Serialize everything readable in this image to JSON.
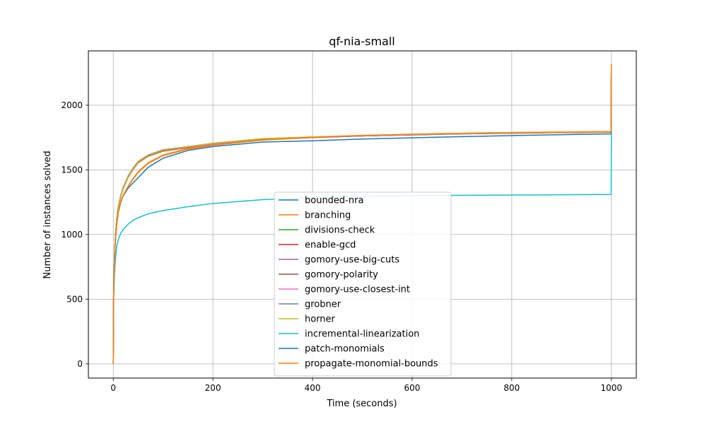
{
  "chart_data": {
    "type": "line",
    "title": "qf-nia-small",
    "xlabel": "Time (seconds)",
    "ylabel": "Number of instances solved",
    "xlim": [
      -50,
      1050
    ],
    "ylim": [
      -110,
      2420
    ],
    "xticks": [
      0,
      200,
      400,
      600,
      800,
      1000
    ],
    "yticks": [
      0,
      500,
      1000,
      1500,
      2000
    ],
    "grid": true,
    "legend_position": "lower-center",
    "series": [
      {
        "name": "bounded-nra",
        "color": "#1f77b4",
        "x": [
          0,
          0.5,
          1,
          2,
          3,
          5,
          7,
          10,
          15,
          20,
          30,
          40,
          50,
          70,
          100,
          150,
          200,
          300,
          400,
          500,
          600,
          700,
          800,
          900,
          999.5,
          1000
        ],
        "y": [
          0,
          450,
          620,
          760,
          880,
          1020,
          1120,
          1210,
          1300,
          1360,
          1450,
          1510,
          1560,
          1610,
          1650,
          1675,
          1700,
          1735,
          1750,
          1762,
          1770,
          1778,
          1783,
          1788,
          1790,
          2310
        ]
      },
      {
        "name": "branching",
        "color": "#ff7f0e",
        "x": [
          0,
          0.5,
          1,
          2,
          3,
          5,
          7,
          10,
          15,
          20,
          30,
          40,
          50,
          70,
          100,
          150,
          200,
          300,
          400,
          500,
          600,
          700,
          800,
          900,
          999.5,
          1000
        ],
        "y": [
          0,
          440,
          600,
          740,
          860,
          990,
          1080,
          1170,
          1250,
          1300,
          1370,
          1430,
          1480,
          1550,
          1610,
          1660,
          1690,
          1730,
          1750,
          1765,
          1775,
          1782,
          1788,
          1792,
          1795,
          2320
        ]
      },
      {
        "name": "divisions-check",
        "color": "#2ca02c",
        "x": [
          0,
          0.5,
          1,
          2,
          3,
          5,
          7,
          10,
          15,
          20,
          30,
          40,
          50,
          70,
          100,
          150,
          200,
          300,
          400,
          500,
          600,
          700,
          800,
          900,
          999.5,
          1000
        ],
        "y": [
          0,
          450,
          620,
          760,
          880,
          1020,
          1120,
          1210,
          1300,
          1360,
          1450,
          1510,
          1560,
          1610,
          1650,
          1678,
          1702,
          1738,
          1752,
          1764,
          1772,
          1780,
          1785,
          1790,
          1792,
          2310
        ]
      },
      {
        "name": "enable-gcd",
        "color": "#d62728",
        "x": [
          0,
          0.5,
          1,
          2,
          3,
          5,
          7,
          10,
          15,
          20,
          30,
          40,
          50,
          70,
          100,
          150,
          200,
          300,
          400,
          500,
          600,
          700,
          800,
          900,
          999.5,
          1000
        ],
        "y": [
          0,
          445,
          615,
          755,
          875,
          1015,
          1115,
          1205,
          1295,
          1355,
          1445,
          1505,
          1555,
          1605,
          1645,
          1672,
          1698,
          1735,
          1750,
          1762,
          1771,
          1779,
          1784,
          1789,
          1791,
          2310
        ]
      },
      {
        "name": "gomory-use-big-cuts",
        "color": "#9467bd",
        "x": [
          0,
          0.5,
          1,
          2,
          3,
          5,
          7,
          10,
          15,
          20,
          30,
          40,
          50,
          70,
          100,
          150,
          200,
          300,
          400,
          500,
          600,
          700,
          800,
          900,
          999.5,
          1000
        ],
        "y": [
          0,
          450,
          620,
          760,
          880,
          1020,
          1120,
          1210,
          1300,
          1360,
          1450,
          1510,
          1560,
          1610,
          1650,
          1676,
          1700,
          1736,
          1751,
          1763,
          1771,
          1779,
          1784,
          1789,
          1791,
          2310
        ]
      },
      {
        "name": "gomory-polarity",
        "color": "#8c564b",
        "x": [
          0,
          0.5,
          1,
          2,
          3,
          5,
          7,
          10,
          15,
          20,
          30,
          40,
          50,
          70,
          100,
          150,
          200,
          300,
          400,
          500,
          600,
          700,
          800,
          900,
          999.5,
          1000
        ],
        "y": [
          0,
          450,
          620,
          760,
          880,
          1020,
          1120,
          1210,
          1300,
          1360,
          1450,
          1510,
          1560,
          1610,
          1650,
          1676,
          1700,
          1736,
          1751,
          1763,
          1771,
          1779,
          1784,
          1789,
          1791,
          2310
        ]
      },
      {
        "name": "gomory-use-closest-int",
        "color": "#e377c2",
        "x": [
          0,
          0.5,
          1,
          2,
          3,
          5,
          7,
          10,
          15,
          20,
          30,
          40,
          50,
          70,
          100,
          150,
          200,
          300,
          400,
          500,
          600,
          700,
          800,
          900,
          999.5,
          1000
        ],
        "y": [
          0,
          450,
          620,
          760,
          880,
          1020,
          1120,
          1210,
          1300,
          1360,
          1450,
          1510,
          1560,
          1610,
          1650,
          1676,
          1700,
          1736,
          1751,
          1763,
          1771,
          1779,
          1784,
          1789,
          1791,
          2310
        ]
      },
      {
        "name": "grobner",
        "color": "#7f7f7f",
        "x": [
          0,
          0.5,
          1,
          2,
          3,
          5,
          7,
          10,
          15,
          20,
          30,
          40,
          50,
          70,
          100,
          150,
          200,
          300,
          400,
          500,
          600,
          700,
          800,
          900,
          999.5,
          1000
        ],
        "y": [
          0,
          455,
          625,
          765,
          885,
          1025,
          1125,
          1215,
          1305,
          1365,
          1455,
          1515,
          1565,
          1615,
          1655,
          1680,
          1705,
          1740,
          1754,
          1765,
          1773,
          1781,
          1786,
          1790,
          1792,
          2310
        ]
      },
      {
        "name": "horner",
        "color": "#bcbd22",
        "x": [
          0,
          0.5,
          1,
          2,
          3,
          5,
          7,
          10,
          15,
          20,
          30,
          40,
          50,
          70,
          100,
          150,
          200,
          300,
          400,
          500,
          600,
          700,
          800,
          900,
          999.5,
          1000
        ],
        "y": [
          0,
          450,
          620,
          760,
          880,
          1020,
          1120,
          1210,
          1300,
          1360,
          1450,
          1510,
          1560,
          1610,
          1650,
          1678,
          1706,
          1742,
          1755,
          1766,
          1774,
          1781,
          1786,
          1790,
          1793,
          2310
        ]
      },
      {
        "name": "incremental-linearization",
        "color": "#17becf",
        "x": [
          0,
          0.5,
          1,
          2,
          3,
          5,
          7,
          10,
          15,
          20,
          30,
          40,
          50,
          70,
          100,
          150,
          200,
          250,
          300,
          400,
          500,
          600,
          700,
          800,
          900,
          999.5,
          1000
        ],
        "y": [
          0,
          400,
          530,
          650,
          740,
          840,
          910,
          960,
          1010,
          1040,
          1080,
          1110,
          1130,
          1160,
          1185,
          1215,
          1240,
          1255,
          1270,
          1285,
          1295,
          1300,
          1303,
          1305,
          1307,
          1310,
          1780
        ]
      },
      {
        "name": "patch-monomials",
        "color": "#1f77b4",
        "x": [
          0,
          0.5,
          1,
          2,
          3,
          5,
          7,
          10,
          15,
          20,
          30,
          40,
          50,
          70,
          100,
          150,
          200,
          300,
          400,
          500,
          600,
          700,
          800,
          900,
          999.5,
          1000
        ],
        "y": [
          0,
          440,
          600,
          740,
          860,
          990,
          1080,
          1170,
          1250,
          1300,
          1360,
          1400,
          1440,
          1520,
          1590,
          1650,
          1680,
          1715,
          1725,
          1738,
          1748,
          1757,
          1765,
          1772,
          1778,
          2310
        ]
      },
      {
        "name": "propagate-monomial-bounds",
        "color": "#ff7f0e",
        "x": [
          0,
          0.5,
          1,
          2,
          3,
          5,
          7,
          10,
          15,
          20,
          30,
          40,
          50,
          70,
          100,
          150,
          200,
          300,
          400,
          500,
          600,
          700,
          800,
          900,
          999.5,
          1000
        ],
        "y": [
          0,
          445,
          605,
          745,
          865,
          995,
          1085,
          1175,
          1255,
          1305,
          1375,
          1435,
          1485,
          1555,
          1615,
          1665,
          1692,
          1732,
          1752,
          1766,
          1776,
          1783,
          1789,
          1793,
          1796,
          2320
        ]
      }
    ]
  }
}
